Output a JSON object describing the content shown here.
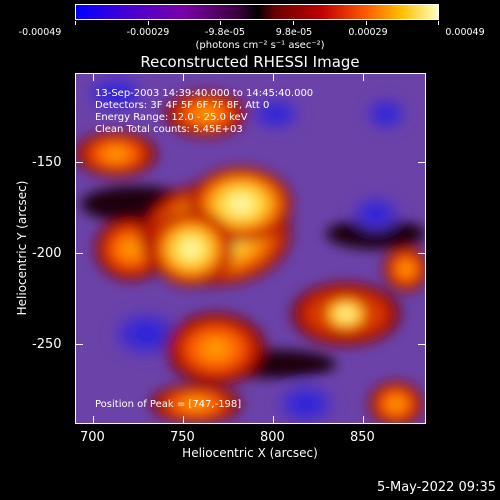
{
  "colorbar": {
    "labels": [
      "-0.00049",
      "-0.00029",
      "-9.8e-05",
      "9.8e-05",
      "0.00029",
      "0.00049"
    ],
    "units": "(photons cm⁻² s⁻¹ asec⁻²)"
  },
  "title": "Reconstructed RHESSI Image",
  "info": {
    "line1": "13-Sep-2003 14:39:40.000 to 14:45:40.000",
    "line2": "Detectors: 3F 4F 5F 6F 7F 8F, Att 0",
    "line3": "Energy Range: 12.0 - 25.0 keV",
    "line4": "Clean     Total counts: 5.45E+03"
  },
  "peak_text": "Position of Peak = [747,-198]",
  "axes": {
    "xlabel": "Heliocentric X (arcsec)",
    "ylabel": "Heliocentric Y (arcsec)",
    "xticks": [
      "700",
      "750",
      "800",
      "850"
    ],
    "yticks": [
      "-150",
      "-200",
      "-250"
    ]
  },
  "footer": "5-May-2022 09:35"
}
